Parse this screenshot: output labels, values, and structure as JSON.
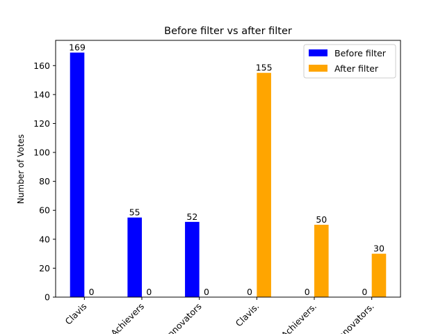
{
  "chart_data": {
    "type": "bar",
    "title": "Before filter vs after filter",
    "xlabel": "",
    "ylabel": "Number of Votes",
    "ylim": [
      0,
      177.45
    ],
    "yticks": [
      0,
      20,
      40,
      60,
      80,
      100,
      120,
      140,
      160
    ],
    "categories": [
      "Clavis",
      "Achievers",
      "Innovators",
      "Clavis.",
      "Achievers.",
      "Innovators."
    ],
    "series": [
      {
        "name": "Before filter",
        "color": "#0000ff",
        "values": [
          169,
          55,
          52,
          0,
          0,
          0
        ]
      },
      {
        "name": "After filter",
        "color": "#ffa500",
        "values": [
          0,
          0,
          0,
          155,
          50,
          30
        ]
      }
    ],
    "legend_position": "top-right",
    "grid": false,
    "tick_label_rotation": 45
  }
}
